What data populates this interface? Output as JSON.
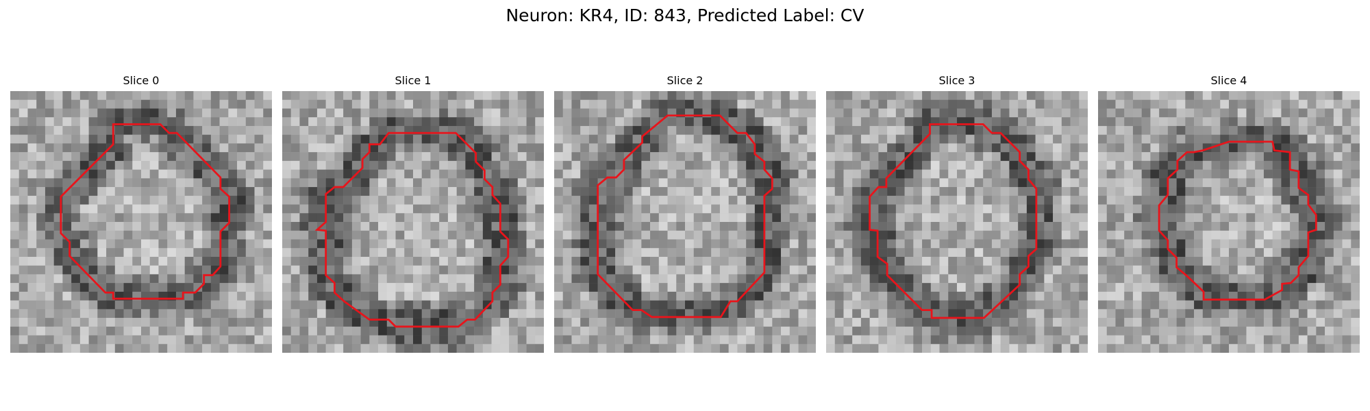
{
  "figure": {
    "title": "Neuron: KR4, ID: 843, Predicted Label: CV",
    "contour_color": "#e8141b",
    "image_colormap": "gray"
  },
  "slices": [
    {
      "title": "Slice 0",
      "seed": 11
    },
    {
      "title": "Slice 1",
      "seed": 23
    },
    {
      "title": "Slice 2",
      "seed": 37
    },
    {
      "title": "Slice 3",
      "seed": 53
    },
    {
      "title": "Slice 4",
      "seed": 71
    }
  ]
}
